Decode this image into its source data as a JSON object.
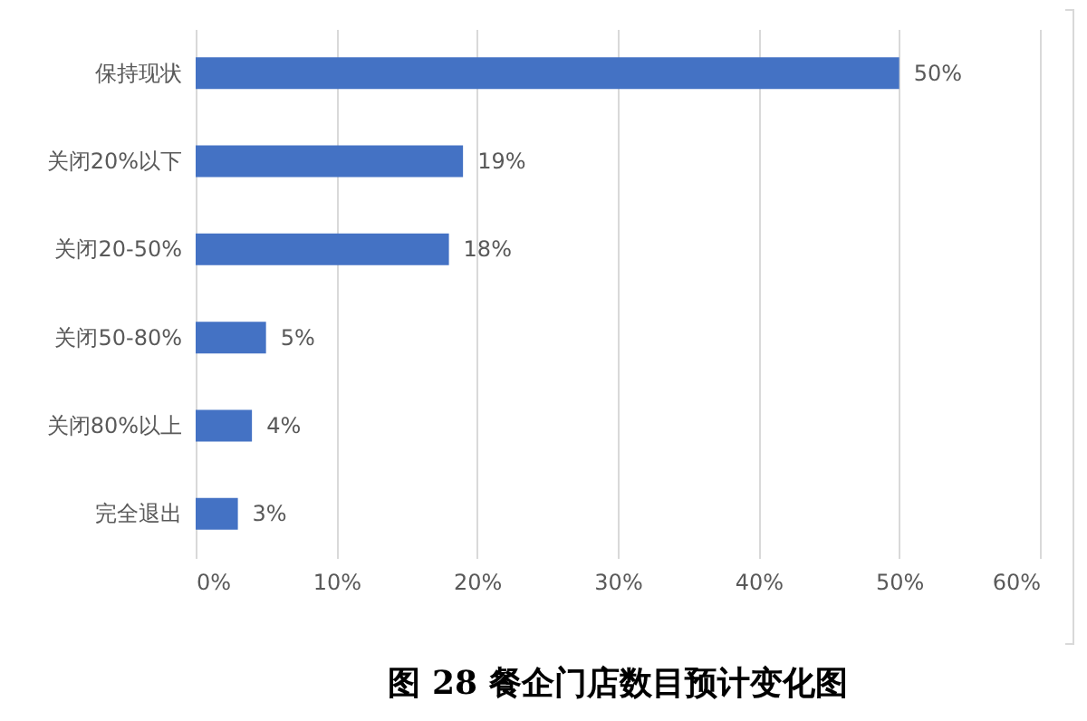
{
  "chart_data": {
    "type": "bar",
    "orientation": "horizontal",
    "title": "图 28 餐企门店数目预计变化图",
    "categories": [
      "保持现状",
      "关闭20%以下",
      "关闭20-50%",
      "关闭50-80%",
      "关闭80%以上",
      "完全退出"
    ],
    "values": [
      50,
      19,
      18,
      5,
      4,
      3
    ],
    "value_labels": [
      "50%",
      "19%",
      "18%",
      "5%",
      "4%",
      "3%"
    ],
    "color": "#4472c4",
    "xlim": [
      0,
      60
    ],
    "xticks": [
      {
        "value": 0,
        "label": "0%"
      },
      {
        "value": 10,
        "label": "10%"
      },
      {
        "value": 20,
        "label": "20%"
      },
      {
        "value": 30,
        "label": "30%"
      },
      {
        "value": 40,
        "label": "40%"
      },
      {
        "value": 50,
        "label": "50%"
      },
      {
        "value": 60,
        "label": "60%"
      }
    ],
    "grid": "x"
  }
}
